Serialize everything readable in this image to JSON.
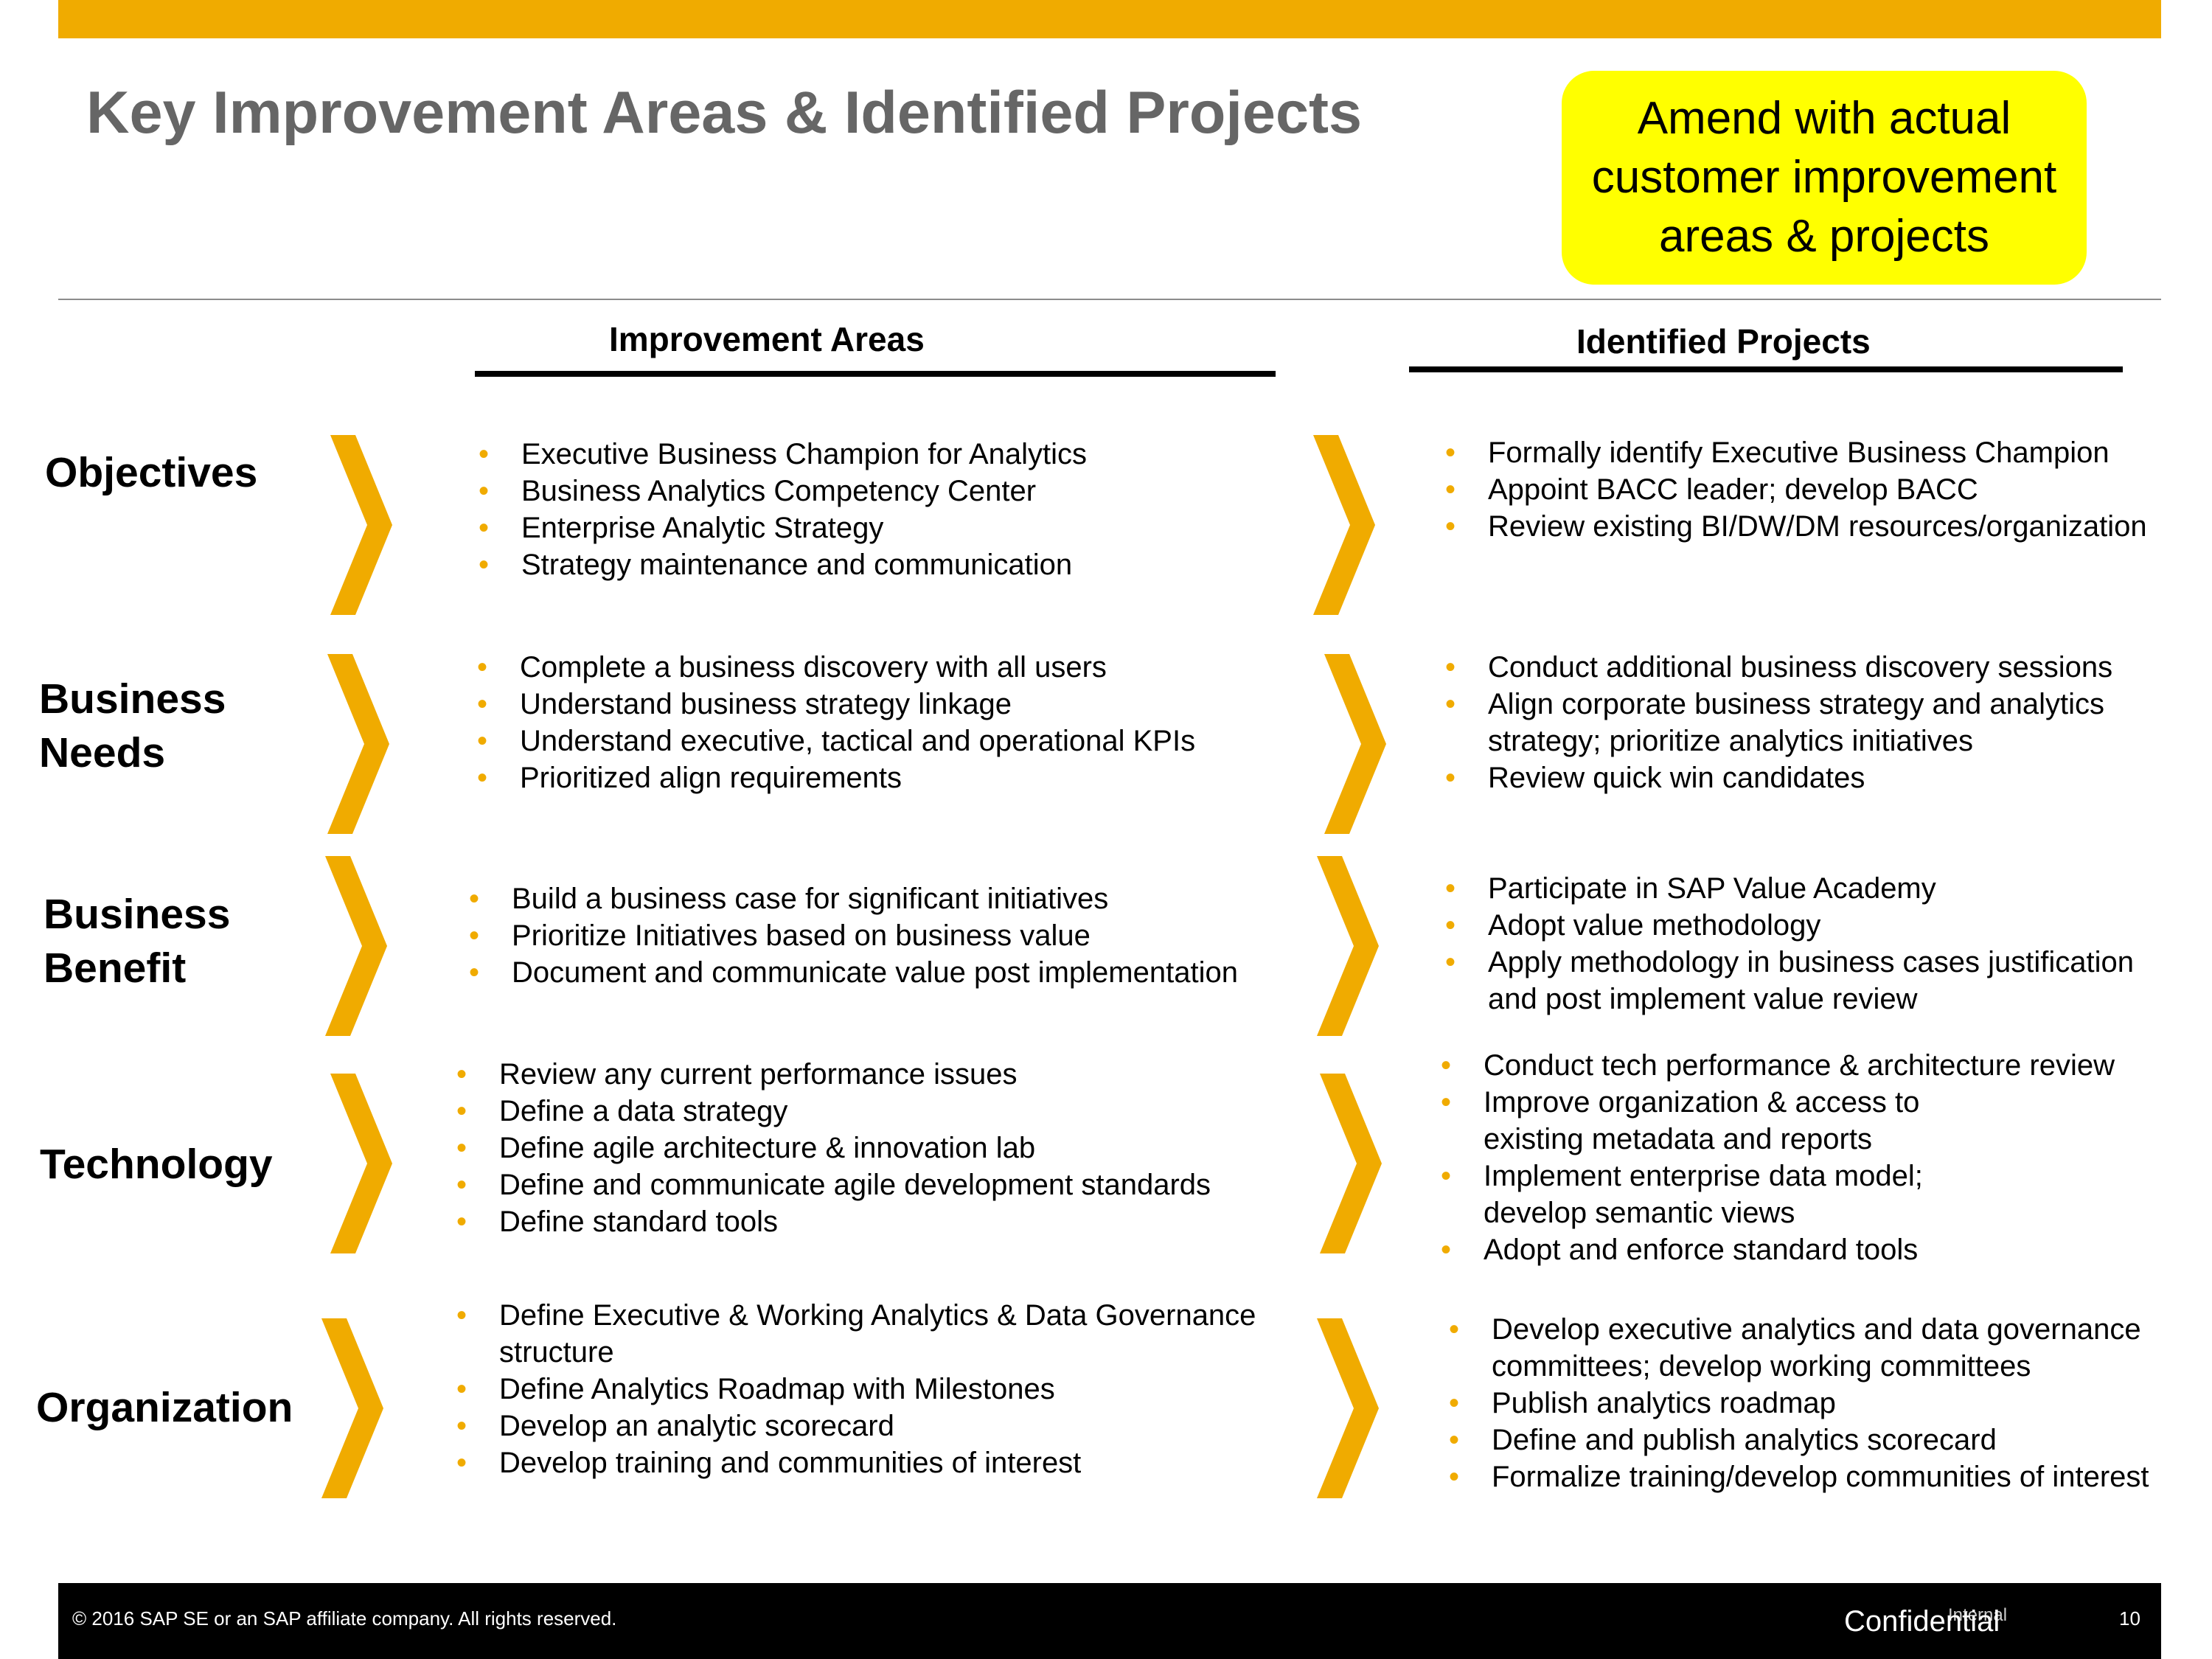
{
  "slide": {
    "title": "Key Improvement Areas & Identified Projects",
    "note": "Amend with actual customer improvement areas & projects"
  },
  "columns": {
    "left": "Improvement Areas",
    "right": "Identified Projects"
  },
  "rows": [
    {
      "label": "Objectives",
      "areas": [
        "Executive Business Champion for Analytics",
        "Business Analytics Competency Center",
        "Enterprise Analytic Strategy",
        "Strategy maintenance and communication"
      ],
      "projects": [
        "Formally identify Executive Business Champion",
        "Appoint BACC leader; develop BACC",
        "Review existing BI/DW/DM resources/organization"
      ]
    },
    {
      "label": "Business Needs",
      "areas": [
        "Complete a business discovery with all users",
        "Understand  business strategy linkage",
        "Understand executive, tactical and operational KPIs",
        "Prioritized align requirements"
      ],
      "projects": [
        "Conduct additional business discovery sessions",
        "Align corporate business strategy and analytics strategy; prioritize analytics initiatives",
        "Review quick win candidates"
      ]
    },
    {
      "label": "Business Benefit",
      "areas": [
        "Build a business case for significant initiatives",
        "Prioritize Initiatives based on business value",
        "Document and communicate value post implementation"
      ],
      "projects": [
        "Participate in SAP Value Academy",
        "Adopt value methodology",
        "Apply methodology in business cases justification and post implement value review"
      ]
    },
    {
      "label": "Technology",
      "areas": [
        "Review any current performance issues",
        "Define a data strategy",
        "Define agile architecture & innovation lab",
        "Define and communicate agile development standards",
        "Define standard tools"
      ],
      "projects": [
        "Conduct tech performance & architecture review",
        "Improve organization & access to existing metadata and reports",
        "Implement enterprise data model; develop semantic views",
        "Adopt and enforce standard tools"
      ]
    },
    {
      "label": "Organization",
      "areas": [
        "Define Executive & Working Analytics & Data Governance structure",
        "Define Analytics Roadmap with Milestones",
        "Develop an analytic scorecard",
        "Develop training and communities of interest"
      ],
      "projects": [
        "Develop executive analytics and data governance committees; develop working committees",
        "Publish analytics roadmap",
        "Define and publish analytics scorecard",
        "Formalize training/develop communities of interest"
      ]
    }
  ],
  "footer": {
    "copyright": "© 2016 SAP SE or an SAP affiliate company. All rights reserved.",
    "classification": "Confidential",
    "classification_old": "Internal",
    "page_number": "10"
  },
  "colors": {
    "accent": "#F0AB00",
    "title": "#666666",
    "note_bg": "#FFFF00"
  }
}
